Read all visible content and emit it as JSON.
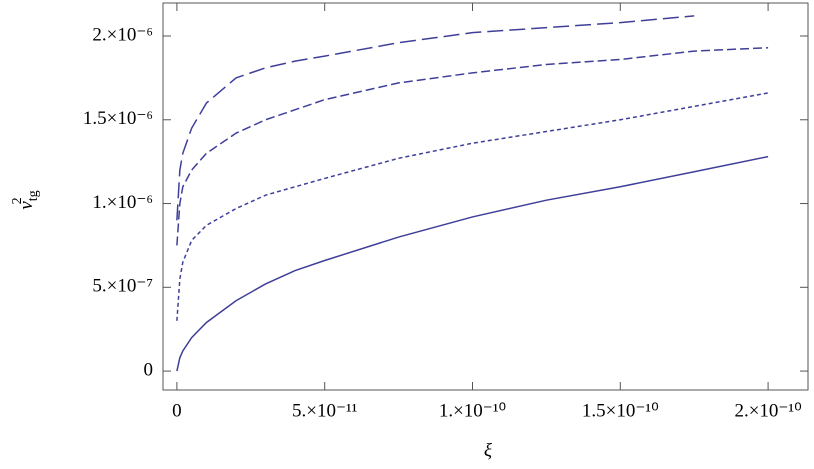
{
  "chart_data": {
    "type": "line",
    "xlabel": "ξ",
    "ylabel": {
      "text": "v",
      "sub": "tg",
      "sup": "2"
    },
    "x": [
      0,
      1e-12,
      2e-12,
      5e-12,
      1e-11,
      2e-11,
      3e-11,
      4e-11,
      5e-11,
      7.5e-11,
      1e-10,
      1.25e-10,
      1.5e-10,
      1.75e-10,
      2e-10
    ],
    "series": [
      {
        "color": "#3f3f99",
        "dash": "none",
        "values": [
          0,
          8e-08,
          1.2e-07,
          2e-07,
          2.9e-07,
          4.2e-07,
          5.2e-07,
          6e-07,
          6.6e-07,
          8e-07,
          9.2e-07,
          1.02e-06,
          1.1e-06,
          1.19e-06,
          1.28e-06
        ]
      },
      {
        "color": "#3f3f99",
        "dash": "4 3",
        "values": [
          3e-07,
          5.5e-07,
          6.5e-07,
          7.8e-07,
          8.7e-07,
          9.7e-07,
          1.05e-06,
          1.1e-06,
          1.15e-06,
          1.27e-06,
          1.36e-06,
          1.43e-06,
          1.5e-06,
          1.58e-06,
          1.66e-06
        ]
      },
      {
        "color": "#3f3f99",
        "dash": "9 4",
        "values": [
          7.5e-07,
          1e-06,
          1.1e-06,
          1.2e-06,
          1.3e-06,
          1.42e-06,
          1.5e-06,
          1.56e-06,
          1.62e-06,
          1.72e-06,
          1.78e-06,
          1.83e-06,
          1.86e-06,
          1.91e-06,
          1.93e-06
        ]
      },
      {
        "color": "#3f3f99",
        "dash": "16 6",
        "values": [
          9e-07,
          1.2e-06,
          1.3e-06,
          1.45e-06,
          1.6e-06,
          1.75e-06,
          1.81e-06,
          1.85e-06,
          1.88e-06,
          1.96e-06,
          2.02e-06,
          2.05e-06,
          2.08e-06,
          2.12e-06,
          null
        ]
      }
    ],
    "xlim": [
      -4.7e-12,
      2.135e-10
    ],
    "ylim": [
      -1.13e-07,
      2.197e-06
    ],
    "xticks": [
      0,
      {
        "value": 5e-11,
        "label": "5.×10⁻¹¹"
      },
      {
        "value": 1e-10,
        "label": "1.×10⁻¹⁰"
      },
      {
        "value": 1.5e-10,
        "label": "1.5×10⁻¹⁰"
      },
      {
        "value": 2e-10,
        "label": "2.×10⁻¹⁰"
      }
    ],
    "yticks": [
      0,
      {
        "value": 5e-07,
        "label": "5.×10⁻⁷"
      },
      {
        "value": 1e-06,
        "label": "1.×10⁻⁶"
      },
      {
        "value": 1.5e-06,
        "label": "1.5×10⁻⁶"
      },
      {
        "value": 2e-06,
        "label": "2.×10⁻⁶"
      }
    ],
    "grid": false
  }
}
